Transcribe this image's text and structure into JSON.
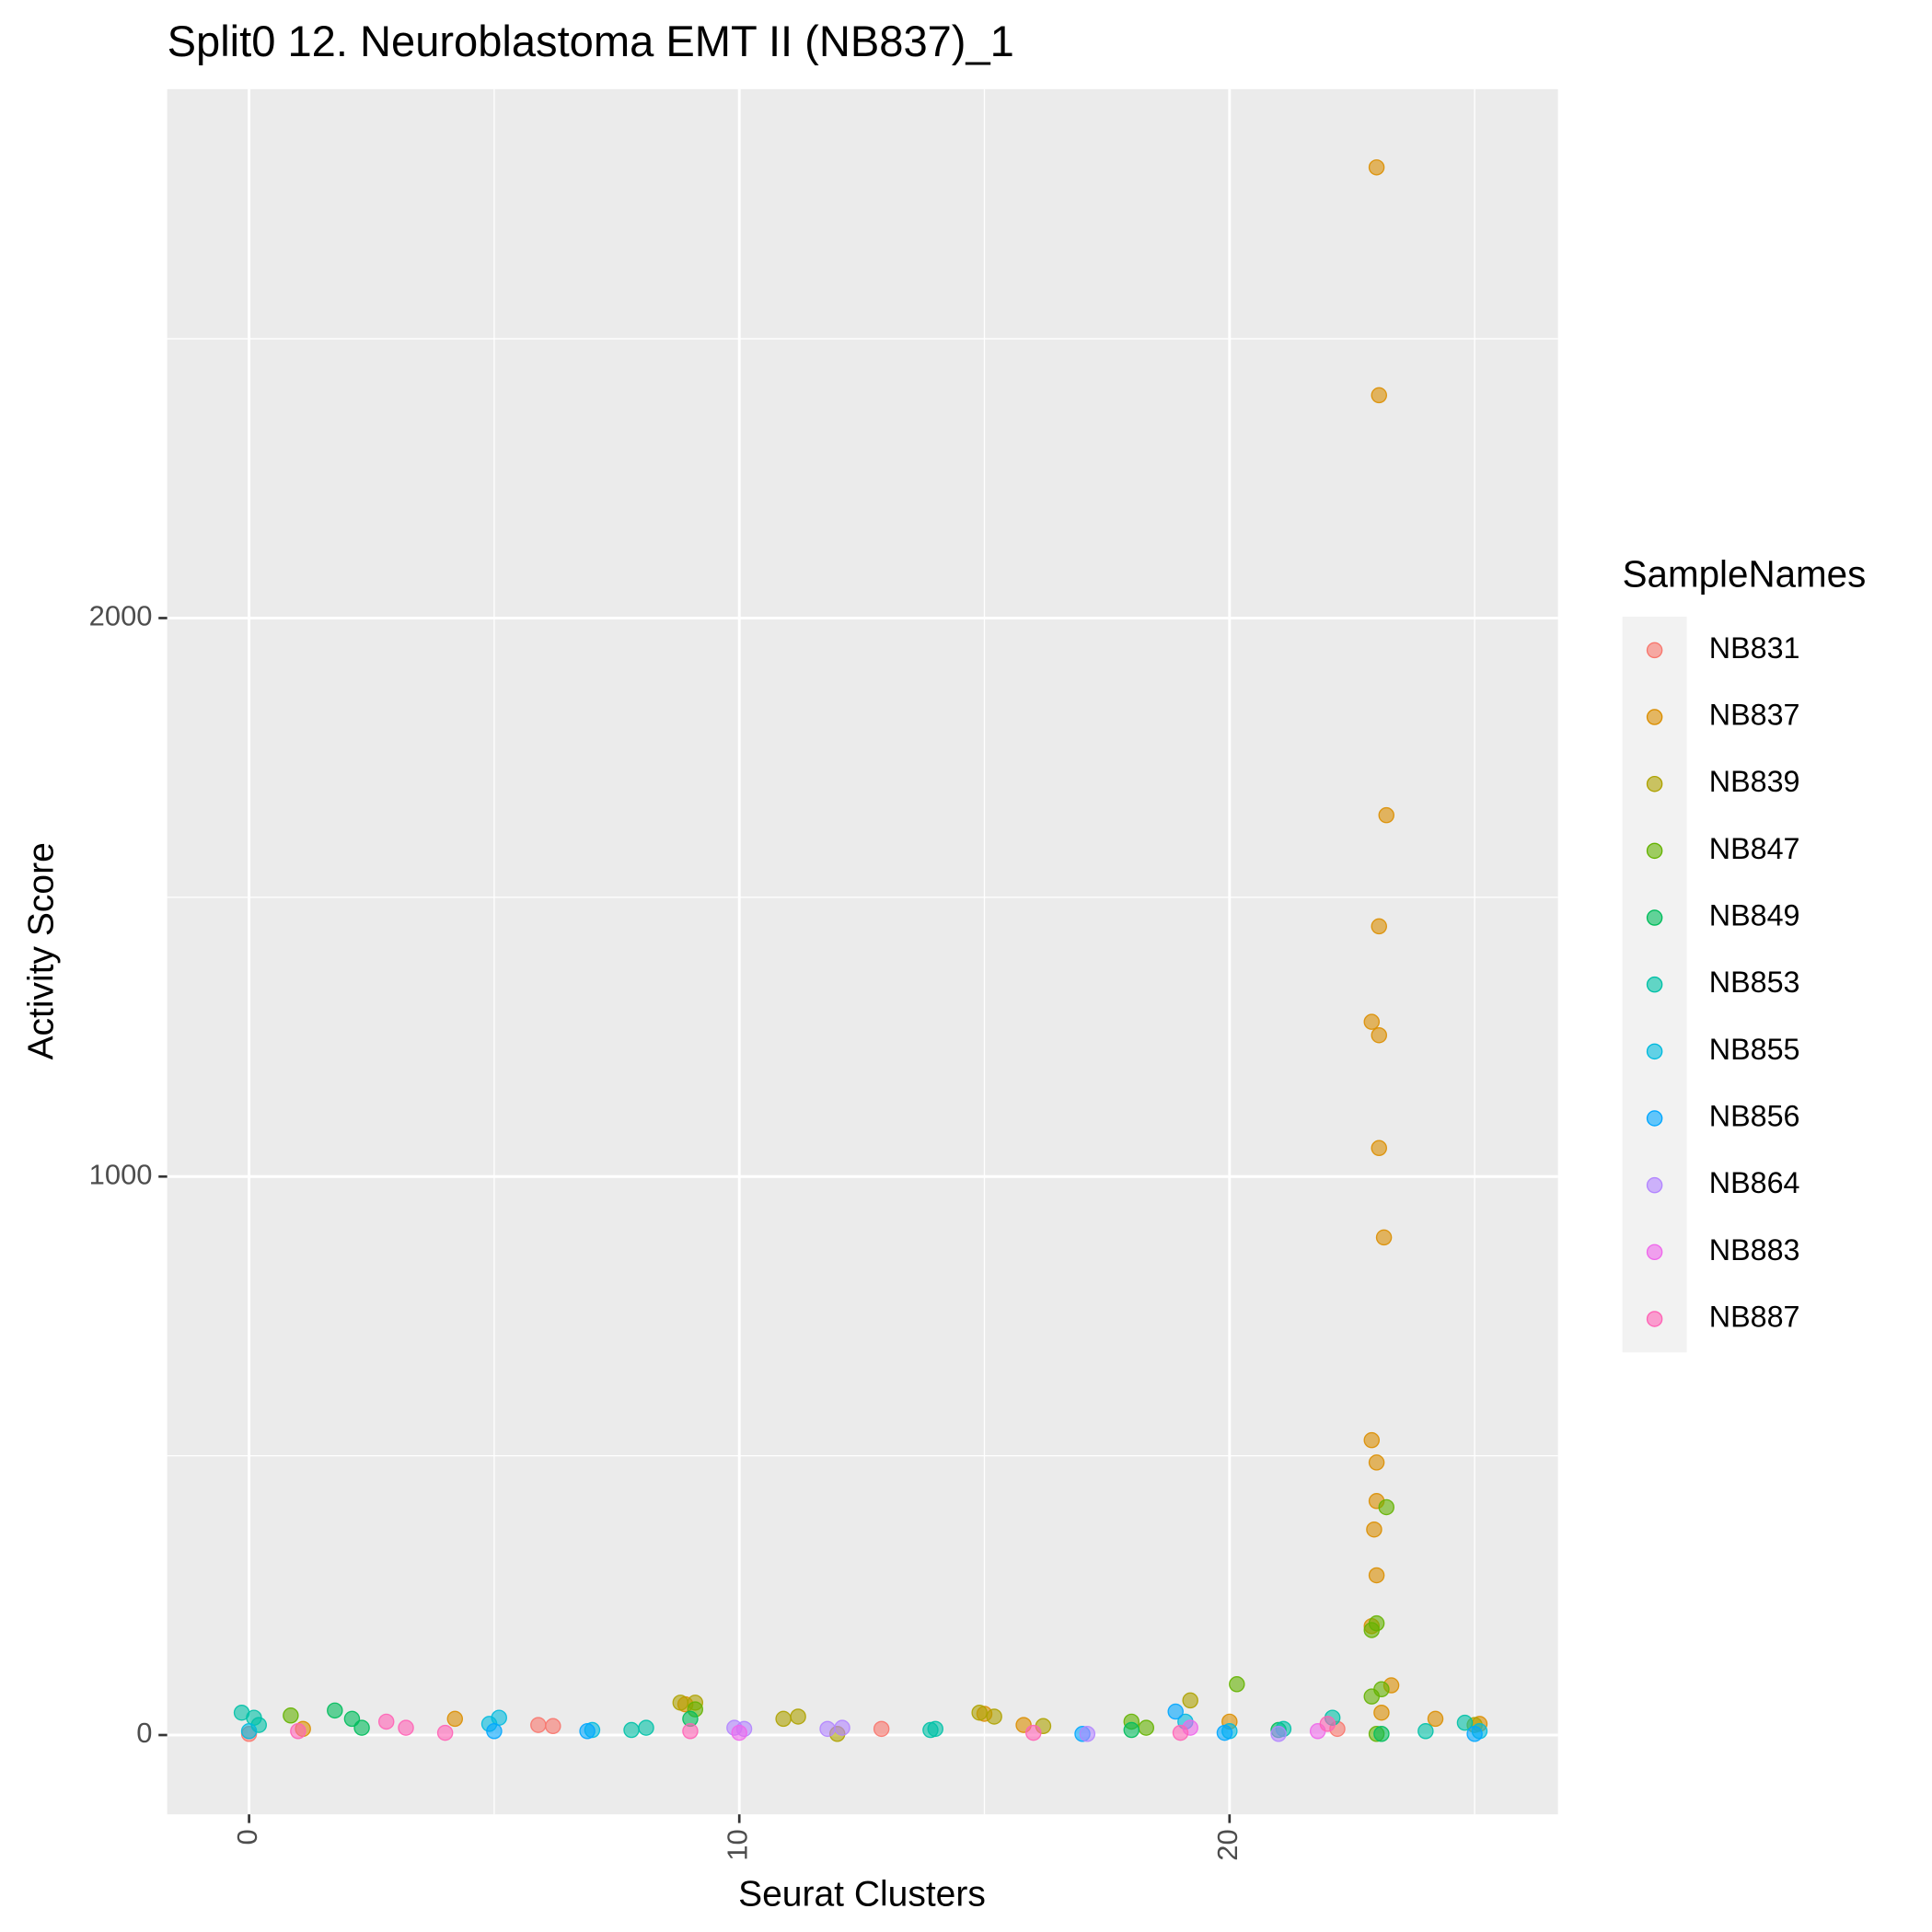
{
  "chart_data": {
    "type": "scatter",
    "title": "Split0 12. Neuroblastoma EMT II (NB837)_1",
    "xlabel": "Seurat Clusters",
    "ylabel": "Activity Score",
    "legend_title": "SampleNames",
    "legend_position": "right",
    "grid": true,
    "xlim": [
      -1.67,
      26.7
    ],
    "ylim": [
      -142,
      2947
    ],
    "xticks": [
      0,
      10,
      20
    ],
    "yticks": [
      0,
      1000,
      2000
    ],
    "x_minor": [
      5,
      15,
      25
    ],
    "y_minor": [
      500,
      1500,
      2500
    ],
    "series": [
      {
        "name": "NB831",
        "color": "#F8766D",
        "x": [
          5.9,
          6.2,
          12.9,
          22.2,
          0
        ],
        "y": [
          18,
          16,
          11,
          11,
          2
        ]
      },
      {
        "name": "NB837",
        "color": "#DB8E00",
        "x": [
          23.0,
          23.05,
          23.2,
          23.05,
          22.9,
          23.05,
          23.05,
          23.15,
          22.9,
          23.0,
          23.0,
          22.95,
          23.0,
          22.9,
          23.3,
          23.1,
          1.1,
          4.2,
          8.9,
          15.0,
          15.8,
          20.0,
          24.2,
          25.1
        ],
        "y": [
          2807,
          2399,
          1647,
          1448,
          1277,
          1253,
          1051,
          891,
          528,
          488,
          419,
          368,
          286,
          195,
          89,
          40,
          11,
          29,
          55,
          38,
          18,
          24,
          29,
          20
        ]
      },
      {
        "name": "NB839",
        "color": "#AEA200",
        "x": [
          8.8,
          9.1,
          10.9,
          11.2,
          14.9,
          15.2,
          16.2,
          19.2,
          25.0,
          12.0
        ],
        "y": [
          58,
          58,
          29,
          33,
          40,
          33,
          16,
          62,
          18,
          2
        ]
      },
      {
        "name": "NB847",
        "color": "#64B200",
        "x": [
          23.2,
          23.0,
          22.9,
          22.9,
          23.1,
          20.15,
          0.85,
          18.0,
          18.3,
          9.1,
          23.0
        ],
        "y": [
          408,
          200,
          188,
          69,
          82,
          91,
          35,
          24,
          13,
          46,
          2
        ]
      },
      {
        "name": "NB849",
        "color": "#00BD5C",
        "x": [
          1.75,
          2.1,
          2.3,
          9.0,
          18.0,
          23.1,
          21.0
        ],
        "y": [
          44,
          29,
          13,
          29,
          9,
          2,
          9
        ]
      },
      {
        "name": "NB853",
        "color": "#00C1A7",
        "x": [
          -0.15,
          0.1,
          0.2,
          8.1,
          7.8,
          14.0,
          13.9,
          22.1,
          24.8,
          24.0,
          21.1
        ],
        "y": [
          40,
          31,
          18,
          13,
          9,
          11,
          9,
          31,
          22,
          7,
          11
        ]
      },
      {
        "name": "NB855",
        "color": "#00BADE",
        "x": [
          5.1,
          4.9,
          7.0,
          19.1,
          20.0,
          25.1,
          0.0
        ],
        "y": [
          31,
          20,
          9,
          24,
          7,
          7,
          7
        ]
      },
      {
        "name": "NB856",
        "color": "#00A6FF",
        "x": [
          18.9,
          6.9,
          17.0,
          19.9,
          5.0,
          25.0
        ],
        "y": [
          42,
          7,
          2,
          4,
          7,
          2
        ]
      },
      {
        "name": "NB864",
        "color": "#B385FF",
        "x": [
          9.9,
          10.1,
          12.1,
          11.8,
          17.1,
          21.0
        ],
        "y": [
          13,
          11,
          13,
          11,
          2,
          2
        ]
      },
      {
        "name": "NB883",
        "color": "#EF67EB",
        "x": [
          19.2,
          10.0,
          21.8
        ],
        "y": [
          13,
          4,
          7
        ]
      },
      {
        "name": "NB887",
        "color": "#FF63B6",
        "x": [
          2.8,
          3.2,
          4.0,
          9.0,
          16.0,
          19.0,
          22.0,
          1.0
        ],
        "y": [
          24,
          13,
          4,
          7,
          4,
          4,
          20,
          7
        ]
      }
    ]
  }
}
